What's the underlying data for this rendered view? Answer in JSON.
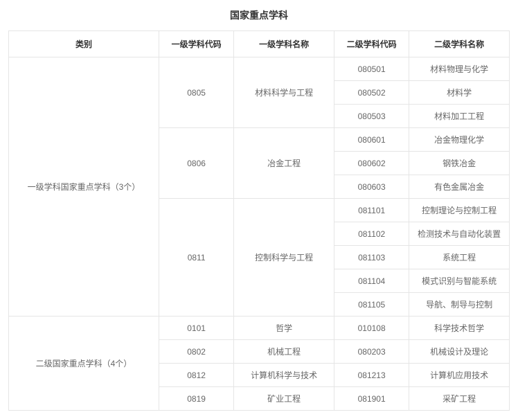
{
  "title": "国家重点学科",
  "headers": {
    "category": "类别",
    "code1": "一级学科代码",
    "name1": "一级学科名称",
    "code2": "二级学科代码",
    "name2": "二级学科名称"
  },
  "styling": {
    "background_color": "#ffffff",
    "border_color": "#e5e5e5",
    "header_text_color": "#333333",
    "cell_text_color": "#666666",
    "title_fontsize": 14,
    "header_fontsize": 12,
    "cell_fontsize": 12,
    "col_widths_pct": [
      30,
      15,
      20,
      15,
      20
    ]
  },
  "groups": [
    {
      "category": "一级学科国家重点学科（3个）",
      "sub": [
        {
          "code1": "0805",
          "name1": "材料科学与工程",
          "rows": [
            {
              "code2": "080501",
              "name2": "材料物理与化学"
            },
            {
              "code2": "080502",
              "name2": "材料学"
            },
            {
              "code2": "080503",
              "name2": "材料加工工程"
            }
          ]
        },
        {
          "code1": "0806",
          "name1": "冶金工程",
          "rows": [
            {
              "code2": "080601",
              "name2": "冶金物理化学"
            },
            {
              "code2": "080602",
              "name2": "钢铁冶金"
            },
            {
              "code2": "080603",
              "name2": "有色金属冶金"
            }
          ]
        },
        {
          "code1": "0811",
          "name1": "控制科学与工程",
          "rows": [
            {
              "code2": "081101",
              "name2": "控制理论与控制工程"
            },
            {
              "code2": "081102",
              "name2": "检测技术与自动化装置"
            },
            {
              "code2": "081103",
              "name2": "系统工程"
            },
            {
              "code2": "081104",
              "name2": "模式识别与智能系统"
            },
            {
              "code2": "081105",
              "name2": "导航、制导与控制"
            }
          ]
        }
      ]
    },
    {
      "category": "二级国家重点学科（4个）",
      "sub": [
        {
          "code1": "0101",
          "name1": "哲学",
          "rows": [
            {
              "code2": "010108",
              "name2": "科学技术哲学"
            }
          ]
        },
        {
          "code1": "0802",
          "name1": "机械工程",
          "rows": [
            {
              "code2": "080203",
              "name2": "机械设计及理论"
            }
          ]
        },
        {
          "code1": "0812",
          "name1": "计算机科学与技术",
          "rows": [
            {
              "code2": "081213",
              "name2": "计算机应用技术"
            }
          ]
        },
        {
          "code1": "0819",
          "name1": "矿业工程",
          "rows": [
            {
              "code2": "081901",
              "name2": "采矿工程"
            }
          ]
        }
      ]
    }
  ]
}
